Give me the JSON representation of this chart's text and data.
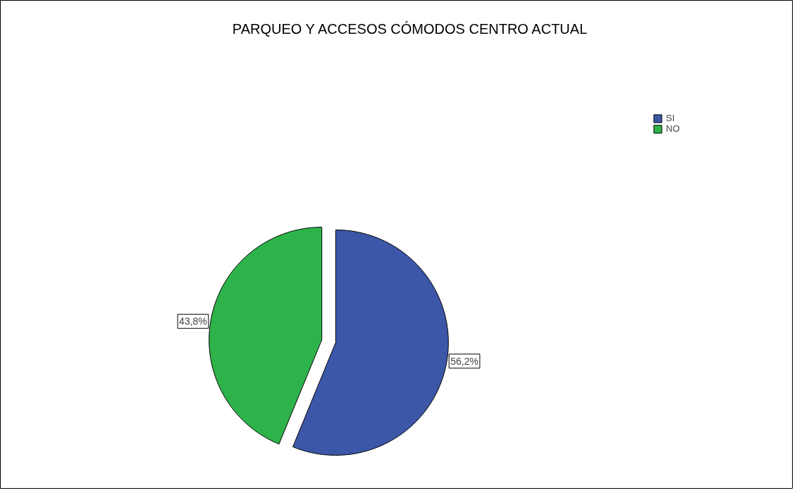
{
  "chart_data": {
    "type": "pie",
    "title": "PARQUEO Y ACCESOS CÓMODOS CENTRO ACTUAL",
    "categories": [
      "SI",
      "NO"
    ],
    "values": [
      56.2,
      43.8
    ],
    "colors": [
      "#3c57a8",
      "#2db34a"
    ],
    "value_labels": [
      "56,2%",
      "43,8%"
    ],
    "legend": "top right"
  }
}
